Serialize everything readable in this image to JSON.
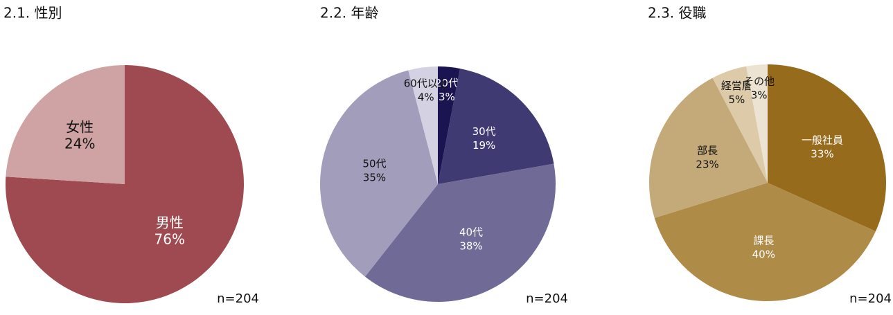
{
  "chart_data": [
    {
      "type": "pie",
      "title": "2.1. 性別",
      "note": "n=204",
      "categories": [
        "男性",
        "女性"
      ],
      "values": [
        76,
        24
      ],
      "value_labels": [
        "76%",
        "24%"
      ],
      "colors": [
        "#9e4a50",
        "#cfa3a3"
      ]
    },
    {
      "type": "pie",
      "title": "2.2. 年齢",
      "note": "n=204",
      "categories": [
        "20代",
        "30代",
        "40代",
        "50代",
        "60代以上"
      ],
      "values": [
        3,
        19,
        38,
        35,
        4
      ],
      "value_labels": [
        "3%",
        "19%",
        "38%",
        "35%",
        "4%"
      ],
      "colors": [
        "#1a1550",
        "#3f3a72",
        "#6f6a96",
        "#a19dbb",
        "#d4d2e2"
      ]
    },
    {
      "type": "pie",
      "title": "2.3. 役職",
      "note": "n=204",
      "categories": [
        "一般社員",
        "課長",
        "部長",
        "経営層",
        "その他"
      ],
      "values": [
        33,
        40,
        23,
        5,
        3
      ],
      "value_labels": [
        "33%",
        "40%",
        "23%",
        "5%",
        "3%"
      ],
      "colors": [
        "#976b1c",
        "#ae8b47",
        "#c4aa78",
        "#dccaa8",
        "#ece3d2"
      ]
    }
  ]
}
